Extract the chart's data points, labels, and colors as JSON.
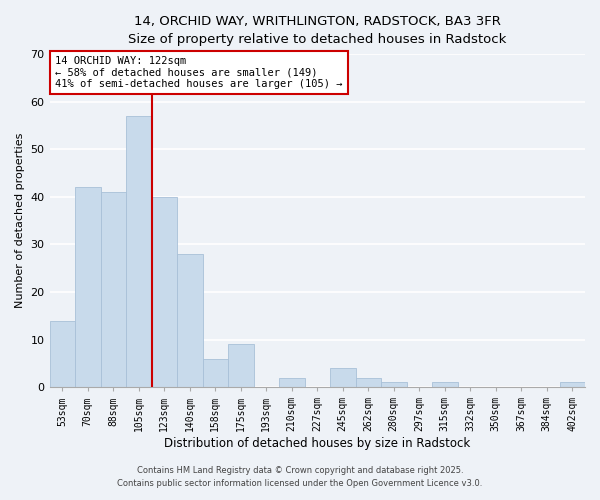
{
  "title": "14, ORCHID WAY, WRITHLINGTON, RADSTOCK, BA3 3FR",
  "subtitle": "Size of property relative to detached houses in Radstock",
  "xlabel": "Distribution of detached houses by size in Radstock",
  "ylabel": "Number of detached properties",
  "bar_color": "#c8daeb",
  "bar_edgecolor": "#a8c0d8",
  "categories": [
    "53sqm",
    "70sqm",
    "88sqm",
    "105sqm",
    "123sqm",
    "140sqm",
    "158sqm",
    "175sqm",
    "193sqm",
    "210sqm",
    "227sqm",
    "245sqm",
    "262sqm",
    "280sqm",
    "297sqm",
    "315sqm",
    "332sqm",
    "350sqm",
    "367sqm",
    "384sqm",
    "402sqm"
  ],
  "values": [
    14,
    42,
    41,
    57,
    40,
    28,
    6,
    9,
    0,
    2,
    0,
    4,
    2,
    1,
    0,
    1,
    0,
    0,
    0,
    0,
    1
  ],
  "ylim": [
    0,
    70
  ],
  "yticks": [
    0,
    10,
    20,
    30,
    40,
    50,
    60,
    70
  ],
  "vline_color": "#cc0000",
  "annotation_text": "14 ORCHID WAY: 122sqm\n← 58% of detached houses are smaller (149)\n41% of semi-detached houses are larger (105) →",
  "annotation_boxcolor": "white",
  "annotation_edgecolor": "#cc0000",
  "footer1": "Contains HM Land Registry data © Crown copyright and database right 2025.",
  "footer2": "Contains public sector information licensed under the Open Government Licence v3.0.",
  "background_color": "#eef2f7",
  "grid_color": "white"
}
